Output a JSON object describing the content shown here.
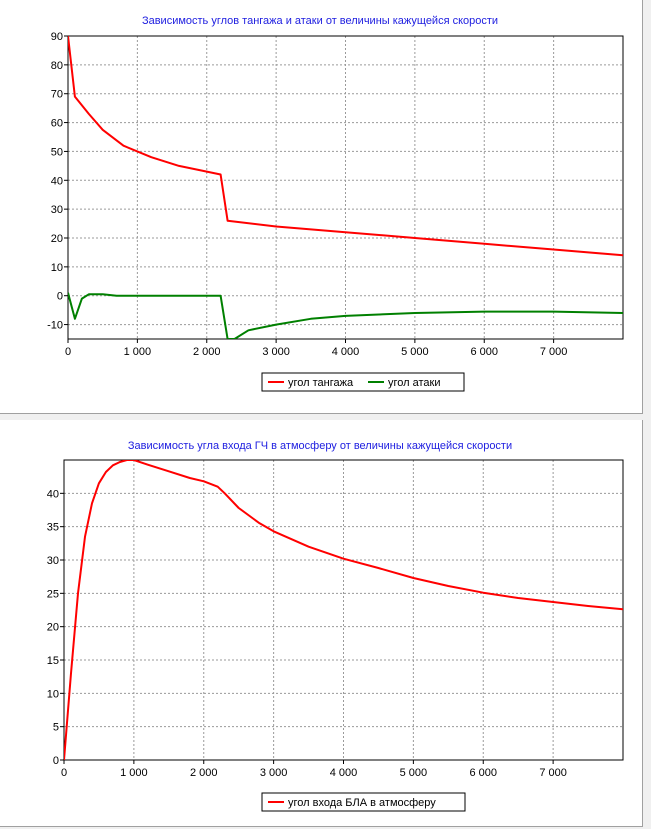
{
  "chart_data": [
    {
      "type": "line",
      "title": "Зависимость углов тангажа и атаки от величины кажущейся скорости",
      "xlabel": "",
      "ylabel": "",
      "xlim": [
        0,
        8000
      ],
      "ylim": [
        -15,
        90
      ],
      "xticks": [
        0,
        1000,
        2000,
        3000,
        4000,
        5000,
        6000,
        7000
      ],
      "xtick_labels": [
        "0",
        "1 000",
        "2 000",
        "3 000",
        "4 000",
        "5 000",
        "6 000",
        "7 000"
      ],
      "yticks": [
        -10,
        0,
        10,
        20,
        30,
        40,
        50,
        60,
        70,
        80,
        90
      ],
      "ytick_labels": [
        "-10",
        "0",
        "10",
        "20",
        "30",
        "40",
        "50",
        "60",
        "70",
        "80",
        "90"
      ],
      "grid": true,
      "legend_position": "bottom-center",
      "series": [
        {
          "name": "угол тангажа",
          "color": "#ff0000",
          "points": [
            [
              0,
              90
            ],
            [
              100,
              69
            ],
            [
              300,
              63
            ],
            [
              500,
              57.5
            ],
            [
              800,
              52
            ],
            [
              1200,
              48
            ],
            [
              1600,
              45
            ],
            [
              2000,
              43
            ],
            [
              2200,
              42
            ],
            [
              2300,
              26
            ],
            [
              3000,
              24
            ],
            [
              4000,
              22
            ],
            [
              5000,
              20
            ],
            [
              6000,
              18
            ],
            [
              7000,
              16
            ],
            [
              8000,
              14
            ]
          ]
        },
        {
          "name": "угол атаки",
          "color": "#008000",
          "points": [
            [
              0,
              1
            ],
            [
              100,
              -8
            ],
            [
              200,
              -1
            ],
            [
              300,
              0.5
            ],
            [
              500,
              0.5
            ],
            [
              700,
              0
            ],
            [
              2200,
              0
            ],
            [
              2300,
              -15
            ],
            [
              2400,
              -15
            ],
            [
              2600,
              -12
            ],
            [
              3000,
              -10
            ],
            [
              3500,
              -8
            ],
            [
              4000,
              -7
            ],
            [
              5000,
              -6
            ],
            [
              6000,
              -5.5
            ],
            [
              7000,
              -5.5
            ],
            [
              8000,
              -6
            ]
          ]
        }
      ]
    },
    {
      "type": "line",
      "title": "Зависимость угла входа ГЧ в атмосферу от величины кажущейся скорости",
      "xlabel": "",
      "ylabel": "",
      "xlim": [
        0,
        8000
      ],
      "ylim": [
        0,
        45
      ],
      "xticks": [
        0,
        1000,
        2000,
        3000,
        4000,
        5000,
        6000,
        7000
      ],
      "xtick_labels": [
        "0",
        "1 000",
        "2 000",
        "3 000",
        "4 000",
        "5 000",
        "6 000",
        "7 000"
      ],
      "yticks": [
        0,
        5,
        10,
        15,
        20,
        25,
        30,
        35,
        40
      ],
      "ytick_labels": [
        "0",
        "5",
        "10",
        "15",
        "20",
        "25",
        "30",
        "35",
        "40"
      ],
      "grid": true,
      "legend_position": "bottom-center",
      "series": [
        {
          "name": "угол входа  БЛА  в атмосферу",
          "color": "#ff0000",
          "points": [
            [
              0,
              0
            ],
            [
              100,
              13
            ],
            [
              200,
              25
            ],
            [
              300,
              33.5
            ],
            [
              400,
              38.5
            ],
            [
              500,
              41.5
            ],
            [
              600,
              43.2
            ],
            [
              700,
              44.2
            ],
            [
              800,
              44.7
            ],
            [
              900,
              45
            ],
            [
              1000,
              45
            ],
            [
              1200,
              44.3
            ],
            [
              1500,
              43.3
            ],
            [
              1800,
              42.3
            ],
            [
              2000,
              41.8
            ],
            [
              2200,
              41
            ],
            [
              2300,
              40
            ],
            [
              2500,
              37.8
            ],
            [
              2800,
              35.5
            ],
            [
              3000,
              34.3
            ],
            [
              3500,
              32
            ],
            [
              4000,
              30.2
            ],
            [
              4500,
              28.8
            ],
            [
              5000,
              27.3
            ],
            [
              5500,
              26.1
            ],
            [
              6000,
              25.1
            ],
            [
              6500,
              24.3
            ],
            [
              7000,
              23.7
            ],
            [
              7500,
              23.1
            ],
            [
              8000,
              22.6
            ]
          ]
        }
      ]
    }
  ]
}
